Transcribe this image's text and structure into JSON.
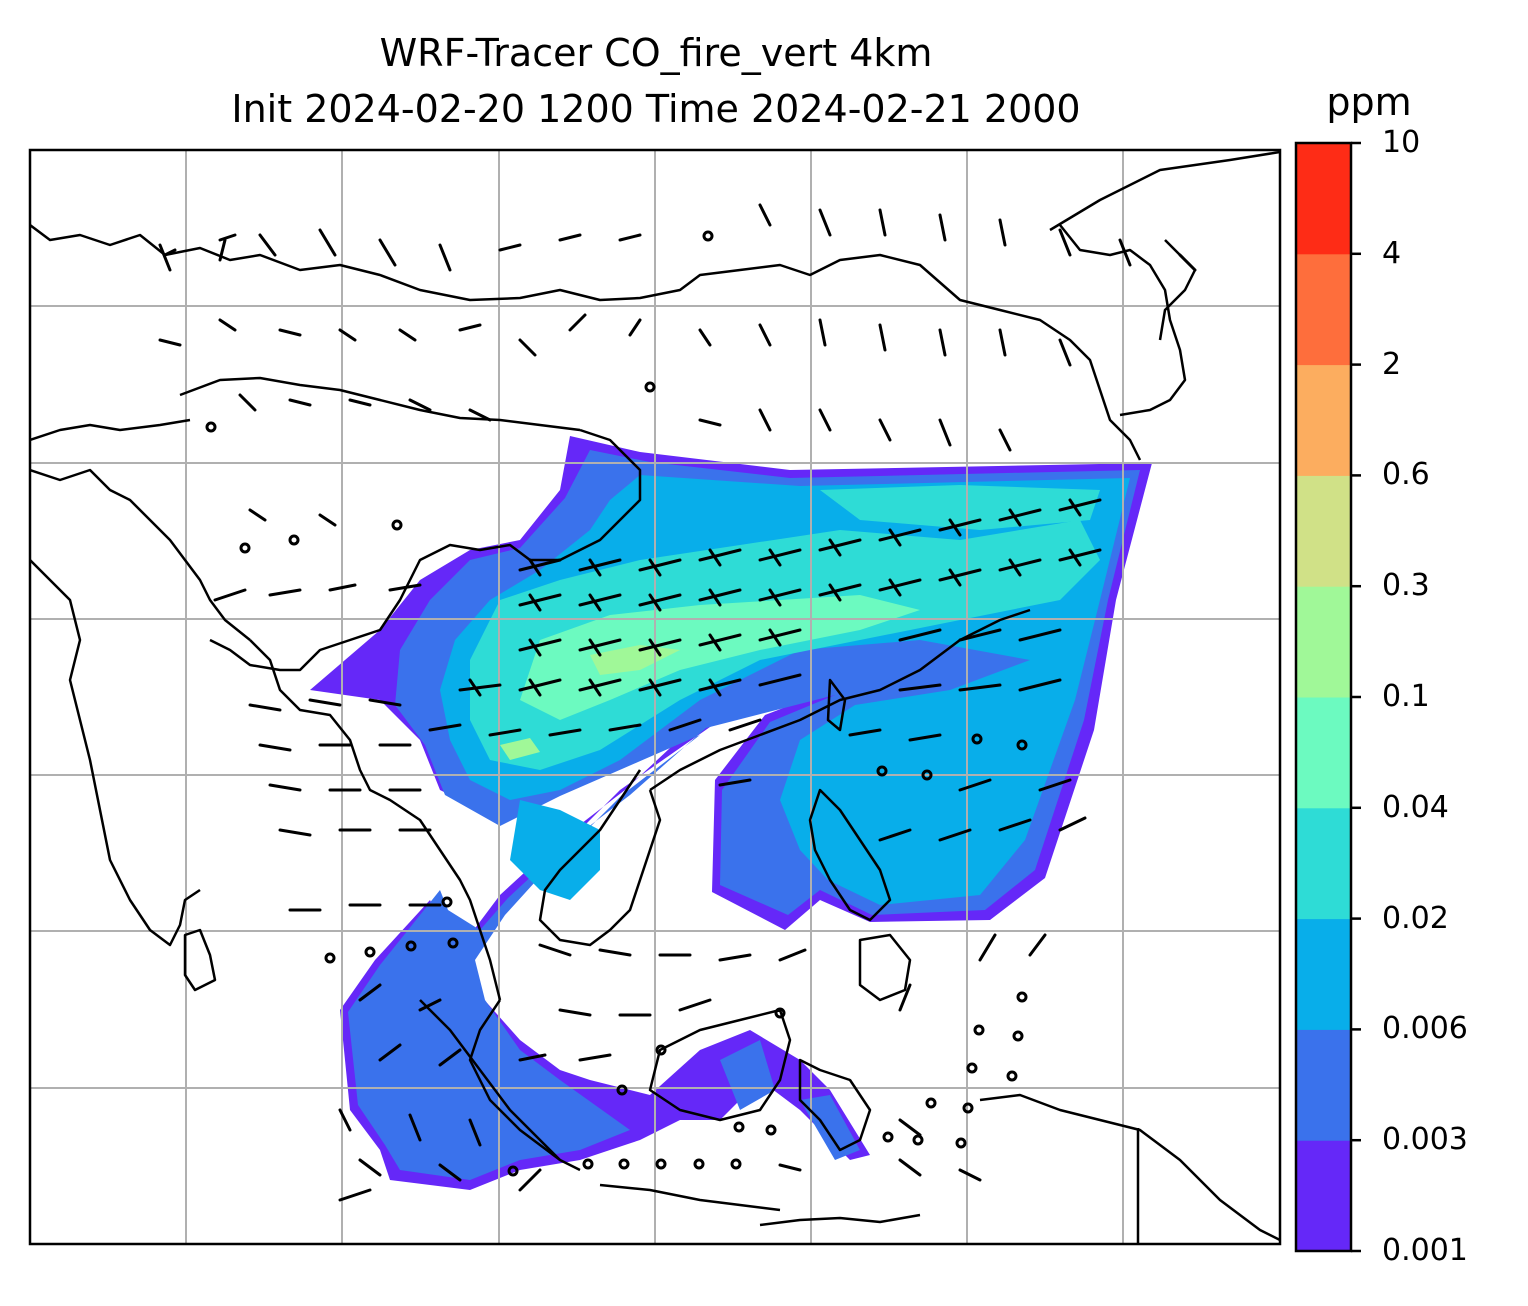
{
  "title": {
    "line1": "WRF-Tracer CO_fire_vert 4km",
    "line2": "Init 2024-02-20 1200 Time 2024-02-21 2000"
  },
  "colorbar": {
    "unit": "ppm",
    "levels": [
      "0.001",
      "0.003",
      "0.006",
      "0.02",
      "0.04",
      "0.1",
      "0.3",
      "0.6",
      "2",
      "4",
      "10"
    ],
    "colors": [
      "#6528f8",
      "#3a72ec",
      "#08aeea",
      "#2edcd6",
      "#6cfac0",
      "#a0f898",
      "#d0e187",
      "#fcad5f",
      "#fe6e3c",
      "#fe2c16"
    ]
  },
  "map": {
    "grid": "on",
    "wind_barbs": "on",
    "plume_colors": {
      "outer": "#6528f8",
      "low": "#3a72ec",
      "mid": "#08aeea",
      "high": "#2edcd6",
      "higher": "#6cfac0",
      "peak": "#a0f898"
    }
  }
}
